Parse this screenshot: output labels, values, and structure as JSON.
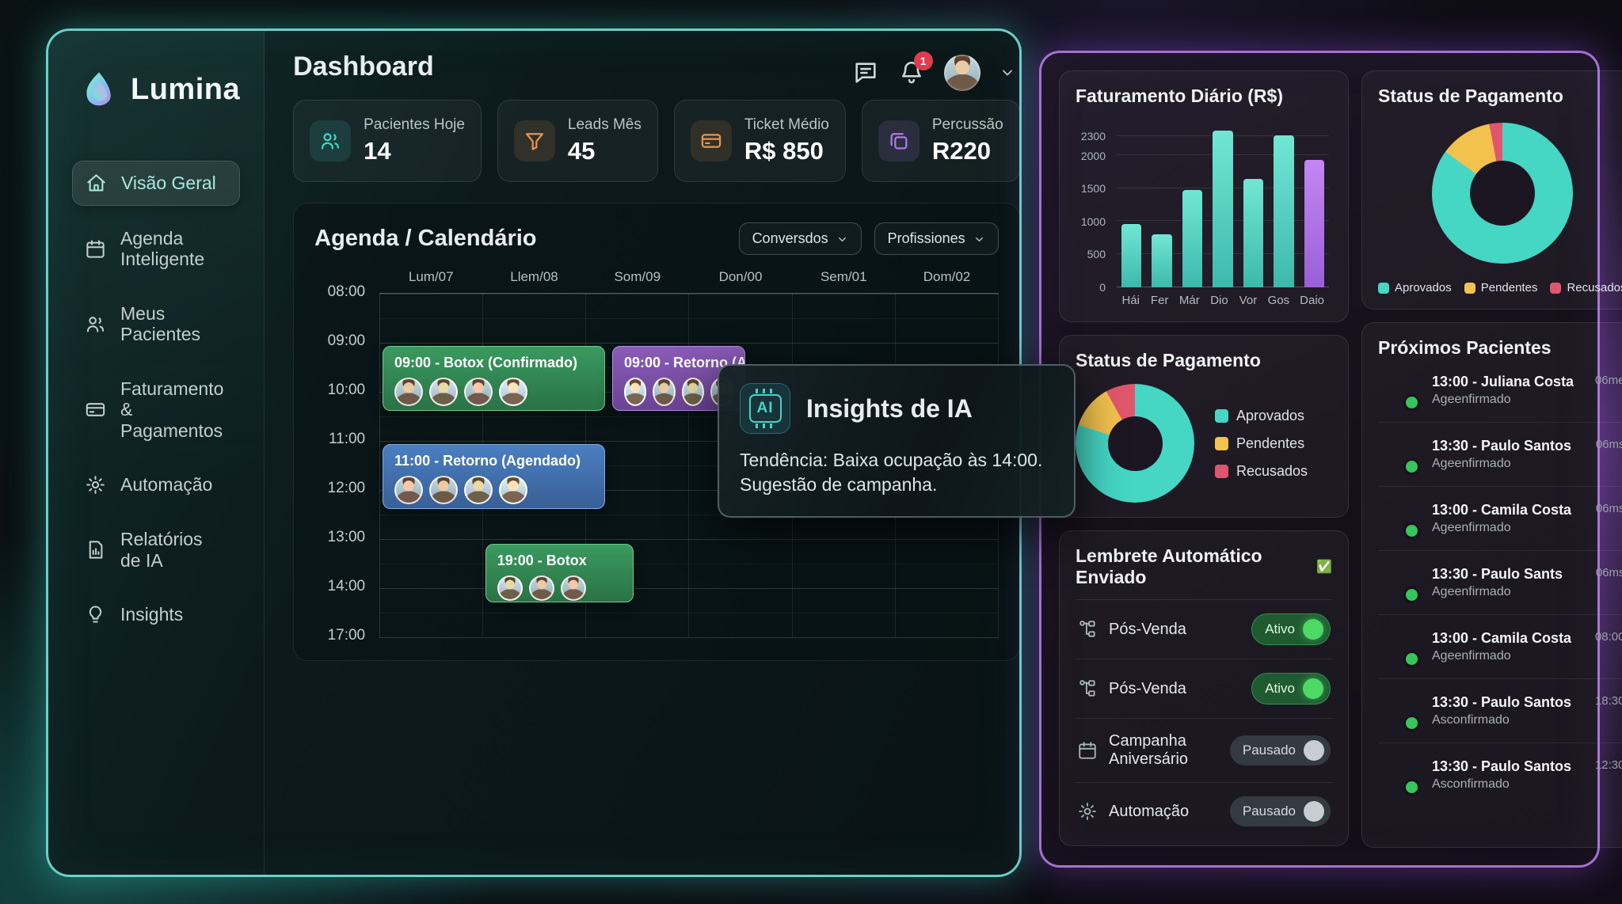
{
  "app": {
    "brand": "Lumina",
    "page_title": "Dashboard"
  },
  "sidebar": {
    "items": [
      {
        "label": "Visão Geral",
        "icon": "home-icon",
        "active": true
      },
      {
        "label": "Agenda Inteligente",
        "icon": "calendar-icon",
        "active": false
      },
      {
        "label": "Meus Pacientes",
        "icon": "users-icon",
        "active": false
      },
      {
        "label": "Faturamento & Pagamentos",
        "icon": "credit-card-icon",
        "active": false
      },
      {
        "label": "Automação",
        "icon": "gear-icon",
        "active": false
      },
      {
        "label": "Relatórios de IA",
        "icon": "report-icon",
        "active": false
      },
      {
        "label": "Insights",
        "icon": "lightbulb-icon",
        "active": false
      }
    ]
  },
  "header": {
    "notification_count": "1",
    "icons": [
      "chat-icon",
      "bell-icon",
      "avatar",
      "chevron-down-icon"
    ]
  },
  "stats": [
    {
      "label": "Pacientes Hoje",
      "value": "14",
      "icon": "users-icon",
      "accent": "#41d8c6"
    },
    {
      "label": "Leads Mês",
      "value": "45",
      "icon": "funnel-icon",
      "accent": "#e8954a"
    },
    {
      "label": "Ticket Médio",
      "value": "R$ 850",
      "icon": "credit-card-icon",
      "accent": "#e8954a"
    },
    {
      "label": "Percussão",
      "value": "R220",
      "icon": "copy-cards-icon",
      "accent": "#b07ae8"
    }
  ],
  "calendar": {
    "title": "Agenda / Calendário",
    "filters": [
      {
        "label": "Conversdos"
      },
      {
        "label": "Profissiones"
      }
    ],
    "days": [
      "Lum/07",
      "Llem/08",
      "Som/09",
      "Don/00",
      "Sem/01",
      "Dom/02"
    ],
    "times": [
      "08:00",
      "09:00",
      "10:00",
      "11:00",
      "12:00",
      "13:00",
      "14:00",
      "17:00"
    ],
    "events": [
      {
        "label": "09:00 - Botox (Confirmado)",
        "color": "green",
        "attendees": 4
      },
      {
        "label": "09:00 - Retorno (A",
        "color": "purple",
        "attendees": 4
      },
      {
        "label": "11:00 - Retorno (Agendado)",
        "color": "blue",
        "attendees": 4
      },
      {
        "label": "19:00 - Botox",
        "color": "green",
        "attendees": 3
      }
    ]
  },
  "insights_popup": {
    "icon_text": "AI",
    "title": "Insights de IA",
    "body": "Tendência: Baixa ocupação às 14:00. Sugestão de campanha."
  },
  "chart_data": [
    {
      "type": "bar",
      "title": "Faturamento Diário (R$)",
      "categories": [
        "Hái",
        "Fer",
        "Már",
        "Dio",
        "Vor",
        "Gos",
        "Daio"
      ],
      "values": [
        960,
        810,
        1480,
        2380,
        1650,
        2310,
        1940
      ],
      "yticks": [
        0,
        500,
        1000,
        1500,
        2000,
        2300
      ],
      "ylim": [
        0,
        2500
      ],
      "xlabel": "",
      "ylabel": "",
      "grid": true,
      "legend_position": "none",
      "bar_colors": [
        "teal",
        "teal",
        "teal",
        "teal",
        "teal",
        "teal",
        "purple"
      ]
    },
    {
      "type": "pie",
      "title": "Status de Pagamento",
      "labels": [
        "Aprovados",
        "Pendentes",
        "Recusados"
      ],
      "values": [
        80,
        12,
        8
      ],
      "colors": [
        "#45d6c4",
        "#f2c14e",
        "#e0566d"
      ],
      "legend_position": "right"
    },
    {
      "type": "pie",
      "title": "Status de Pagamento",
      "labels": [
        "Aprovados",
        "Pendentes",
        "Recusados"
      ],
      "values": [
        85,
        12,
        3
      ],
      "colors": [
        "#45d6c4",
        "#f2c14e",
        "#e0566d"
      ],
      "legend_position": "bottom"
    }
  ],
  "reminders": {
    "title": "Lembrete Automático Enviado",
    "check": "✅",
    "items": [
      {
        "label": "Pós-Venda",
        "icon": "flow-icon",
        "status": "Ativo",
        "on": true
      },
      {
        "label": "Pós-Venda",
        "icon": "flow-icon",
        "status": "Ativo",
        "on": true
      },
      {
        "label": "Campanha Aniversário",
        "icon": "calendar-icon",
        "status": "Pausado",
        "on": false
      },
      {
        "label": "Automação",
        "icon": "gear-icon",
        "status": "Pausado",
        "on": false
      }
    ]
  },
  "patients": {
    "title": "Próximos Pacientes",
    "items": [
      {
        "name": "13:00 - Juliana Costa",
        "status": "Ageenfirmado",
        "meta": "06me"
      },
      {
        "name": "13:30 - Paulo Santos",
        "status": "Ageenfirmado",
        "meta": "06ms"
      },
      {
        "name": "13:00 - Camila Costa",
        "status": "Ageenfirmado",
        "meta": "06ms"
      },
      {
        "name": "13:30 - Paulo Sants",
        "status": "Ageenfirmado",
        "meta": "06ms"
      },
      {
        "name": "13:00 - Camila Costa",
        "status": "Ageenfirmado",
        "meta": "08:00"
      },
      {
        "name": "13:30 - Paulo Santos",
        "status": "Asconfirmado",
        "meta": "18:30"
      },
      {
        "name": "13:30 - Paulo Santos",
        "status": "Asconfirmado",
        "meta": "12:30"
      }
    ]
  }
}
